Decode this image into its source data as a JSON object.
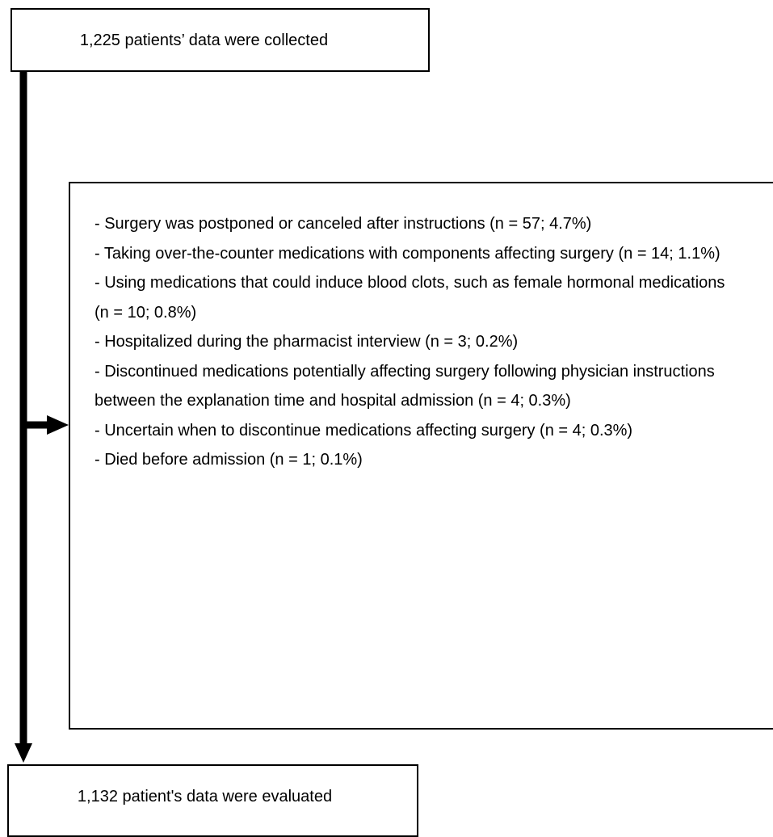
{
  "flow": {
    "start": {
      "label": "1,225 patients’ data were collected"
    },
    "exclusions": {
      "items": [
        "- Surgery was postponed or canceled after instructions (n = 57; 4.7%)",
        "- Taking over-the-counter medications with components affecting surgery (n = 14; 1.1%)",
        "- Using medications that could induce blood clots, such as female hormonal medications (n = 10; 0.8%)",
        "- Hospitalized during the pharmacist interview (n = 3; 0.2%)",
        "- Discontinued medications potentially affecting surgery following physician instructions between the explanation time and hospital admission (n = 4; 0.3%)",
        "- Uncertain when to discontinue medications affecting surgery (n = 4; 0.3%)",
        "- Died before admission (n = 1; 0.1%)"
      ]
    },
    "end": {
      "label": "1,132 patient's data were evaluated"
    }
  },
  "colors": {
    "stroke": "#000000",
    "background": "#ffffff"
  }
}
